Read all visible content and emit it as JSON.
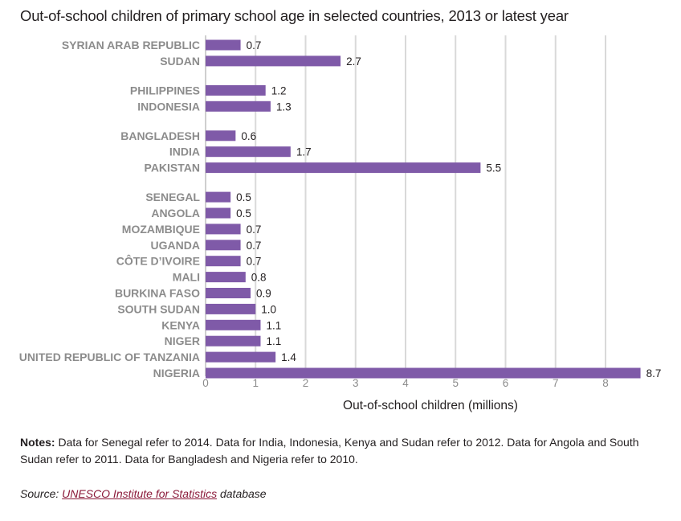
{
  "title": "Out-of-school children of primary school age in selected countries, 2013 or latest year",
  "chart_data": {
    "type": "bar",
    "orientation": "horizontal",
    "title": "Out-of-school children of primary school age in selected countries, 2013 or latest year",
    "xlabel": "Out-of-school children (millions)",
    "ylabel": "",
    "xlim": [
      0,
      8.8
    ],
    "xticks": [
      0,
      1,
      2,
      3,
      4,
      5,
      6,
      7,
      8
    ],
    "grid": true,
    "bar_color": "#7f5aa8",
    "groups": [
      {
        "items": [
          {
            "label": "SYRIAN ARAB REPUBLIC",
            "value": 0.7,
            "text": "0.7"
          },
          {
            "label": "SUDAN",
            "value": 2.7,
            "text": "2.7"
          }
        ]
      },
      {
        "items": [
          {
            "label": "PHILIPPINES",
            "value": 1.2,
            "text": "1.2"
          },
          {
            "label": "INDONESIA",
            "value": 1.3,
            "text": "1.3"
          }
        ]
      },
      {
        "items": [
          {
            "label": "BANGLADESH",
            "value": 0.6,
            "text": "0.6"
          },
          {
            "label": "INDIA",
            "value": 1.7,
            "text": "1.7"
          },
          {
            "label": "PAKISTAN",
            "value": 5.5,
            "text": "5.5"
          }
        ]
      },
      {
        "items": [
          {
            "label": "SENEGAL",
            "value": 0.5,
            "text": "0.5"
          },
          {
            "label": "ANGOLA",
            "value": 0.5,
            "text": "0.5"
          },
          {
            "label": "MOZAMBIQUE",
            "value": 0.7,
            "text": "0.7"
          },
          {
            "label": "UGANDA",
            "value": 0.7,
            "text": "0.7"
          },
          {
            "label": "CÔTE D’IVOIRE",
            "value": 0.7,
            "text": "0.7"
          },
          {
            "label": "MALI",
            "value": 0.8,
            "text": "0.8"
          },
          {
            "label": "BURKINA FASO",
            "value": 0.9,
            "text": "0.9"
          },
          {
            "label": "SOUTH SUDAN",
            "value": 1.0,
            "text": "1.0"
          },
          {
            "label": "KENYA",
            "value": 1.1,
            "text": "1.1"
          },
          {
            "label": "NIGER",
            "value": 1.1,
            "text": "1.1"
          },
          {
            "label": "UNITED REPUBLIC OF TANZANIA",
            "value": 1.4,
            "text": "1.4"
          },
          {
            "label": "NIGERIA",
            "value": 8.7,
            "text": "8.7"
          }
        ]
      }
    ]
  },
  "notes": {
    "label": "Notes:",
    "text": " Data for Senegal refer to 2014. Data for India, Indonesia, Kenya and Sudan refer to 2012. Data for Angola and South Sudan refer to 2011. Data for Bangladesh and Nigeria refer to 2010."
  },
  "source": {
    "label": "Source: ",
    "link_text": "UNESCO Institute for Statistics",
    "suffix": " database"
  }
}
